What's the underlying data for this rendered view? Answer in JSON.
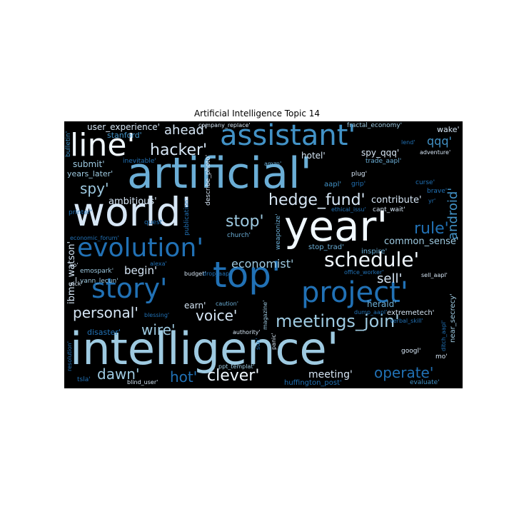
{
  "title": "Artificial Intelligence Topic 14",
  "colors": {
    "background": "#000000",
    "palette": [
      "#f0f8ff",
      "#d6e6f5",
      "#9ecae1",
      "#6baed6",
      "#4292c6",
      "#2171b5",
      "#08519c",
      "#08306b"
    ]
  },
  "words": [
    {
      "text": "intelligence'",
      "size": 62,
      "color": "#9ecae1"
    },
    {
      "text": "artificial'",
      "size": 60,
      "color": "#6baed6"
    },
    {
      "text": "year'",
      "size": 58,
      "color": "#f0f8ff"
    },
    {
      "text": "world'",
      "size": 55,
      "color": "#d6e6f5"
    },
    {
      "text": "top'",
      "size": 50,
      "color": "#2171b5"
    },
    {
      "text": "line'",
      "size": 44,
      "color": "#f0f8ff"
    },
    {
      "text": "assistant'",
      "size": 40,
      "color": "#4292c6"
    },
    {
      "text": "project'",
      "size": 40,
      "color": "#2171b5"
    },
    {
      "text": "story'",
      "size": 38,
      "color": "#2171b5"
    },
    {
      "text": "evolution'",
      "size": 36,
      "color": "#2171b5"
    },
    {
      "text": "schedule'",
      "size": 28,
      "color": "#f0f8ff"
    },
    {
      "text": "meetings_join'",
      "size": 24,
      "color": "#9ecae1"
    },
    {
      "text": "hedge_fund'",
      "size": 22,
      "color": "#d6e6f5"
    },
    {
      "text": "hacker'",
      "size": 22,
      "color": "#d6e6f5"
    },
    {
      "text": "stop'",
      "size": 22,
      "color": "#9ecae1"
    },
    {
      "text": "rule'",
      "size": 22,
      "color": "#2171b5"
    },
    {
      "text": "clever'",
      "size": 22,
      "color": "#f0f8ff"
    },
    {
      "text": "operate'",
      "size": 20,
      "color": "#2171b5"
    },
    {
      "text": "spy'",
      "size": 20,
      "color": "#9ecae1"
    },
    {
      "text": "personal'",
      "size": 20,
      "color": "#d6e6f5"
    },
    {
      "text": "voice'",
      "size": 20,
      "color": "#d6e6f5"
    },
    {
      "text": "hot'",
      "size": 20,
      "color": "#2171b5"
    },
    {
      "text": "dawn'",
      "size": 20,
      "color": "#9ecae1"
    },
    {
      "text": "wire'",
      "size": 20,
      "color": "#9ecae1"
    },
    {
      "text": "ahead'",
      "size": 18,
      "color": "#d6e6f5"
    },
    {
      "text": "sell'",
      "size": 18,
      "color": "#d6e6f5"
    },
    {
      "text": "android'",
      "size": 18,
      "color": "#4292c6"
    },
    {
      "text": "qqq'",
      "size": 16,
      "color": "#4292c6"
    },
    {
      "text": "economist'",
      "size": 16,
      "color": "#9ecae1"
    },
    {
      "text": "begin'",
      "size": 15,
      "color": "#d6e6f5"
    },
    {
      "text": "meeting'",
      "size": 14,
      "color": "#d6e6f5"
    },
    {
      "text": "common_sense'",
      "size": 13,
      "color": "#9ecae1"
    },
    {
      "text": "ambitious'",
      "size": 13,
      "color": "#d6e6f5"
    },
    {
      "text": "contribute'",
      "size": 13,
      "color": "#d6e6f5"
    },
    {
      "text": "ibms_watson'",
      "size": 13,
      "color": "#d6e6f5"
    },
    {
      "text": "hotel'",
      "size": 12,
      "color": "#d6e6f5"
    },
    {
      "text": "spy_qqq'",
      "size": 12,
      "color": "#d6e6f5"
    },
    {
      "text": "herald'",
      "size": 12,
      "color": "#6baed6"
    },
    {
      "text": "user_experience'",
      "size": 12,
      "color": "#d6e6f5"
    },
    {
      "text": "wake'",
      "size": 11,
      "color": "#d6e6f5"
    },
    {
      "text": "stanford'",
      "size": 11,
      "color": "#4292c6"
    },
    {
      "text": "submit'",
      "size": 12,
      "color": "#9ecae1"
    },
    {
      "text": "years_later'",
      "size": 11,
      "color": "#9ecae1"
    },
    {
      "text": "earn'",
      "size": 12,
      "color": "#d6e6f5"
    },
    {
      "text": "disaster'",
      "size": 11,
      "color": "#2171b5"
    },
    {
      "text": "stop_trad'",
      "size": 10,
      "color": "#6baed6"
    },
    {
      "text": "inspire'",
      "size": 10,
      "color": "#6baed6"
    },
    {
      "text": "near_secrecy'",
      "size": 10,
      "color": "#9ecae1"
    },
    {
      "text": "extremetech'",
      "size": 10,
      "color": "#d6e6f5"
    },
    {
      "text": "huffington_post'",
      "size": 10,
      "color": "#2171b5"
    },
    {
      "text": "evaluate'",
      "size": 9,
      "color": "#4292c6"
    },
    {
      "text": "fractal_economy'",
      "size": 9,
      "color": "#9ecae1"
    },
    {
      "text": "company_replace'",
      "size": 8,
      "color": "#d6e6f5"
    },
    {
      "text": "trade_aapl'",
      "size": 9,
      "color": "#6baed6"
    },
    {
      "text": "inevitable'",
      "size": 9,
      "color": "#2171b5"
    },
    {
      "text": "bulletin'",
      "size": 9,
      "color": "#4292c6"
    },
    {
      "text": "lend'",
      "size": 8,
      "color": "#2171b5"
    },
    {
      "text": "adventure'",
      "size": 8,
      "color": "#d6e6f5"
    },
    {
      "text": "plug'",
      "size": 9,
      "color": "#d6e6f5"
    },
    {
      "text": "amzn'",
      "size": 8,
      "color": "#6baed6"
    },
    {
      "text": "aapl'",
      "size": 10,
      "color": "#4292c6"
    },
    {
      "text": "grip'",
      "size": 9,
      "color": "#2171b5"
    },
    {
      "text": "curse'",
      "size": 9,
      "color": "#2171b5"
    },
    {
      "text": "brave'",
      "size": 9,
      "color": "#2171b5"
    },
    {
      "text": "cant_wait'",
      "size": 9,
      "color": "#d6e6f5"
    },
    {
      "text": "ethical_issu'",
      "size": 8,
      "color": "#2171b5"
    },
    {
      "text": "yr'",
      "size": 8,
      "color": "#2171b5"
    },
    {
      "text": "printer'",
      "size": 9,
      "color": "#2171b5"
    },
    {
      "text": "quest'",
      "size": 9,
      "color": "#2171b5"
    },
    {
      "text": "describe_photo'",
      "size": 9,
      "color": "#d6e6f5"
    },
    {
      "text": "publication'",
      "size": 9,
      "color": "#2171b5"
    },
    {
      "text": "church'",
      "size": 9,
      "color": "#6baed6"
    },
    {
      "text": "weaponize'",
      "size": 9,
      "color": "#6baed6"
    },
    {
      "text": "economic_forum'",
      "size": 8,
      "color": "#2171b5"
    },
    {
      "text": "alexa'",
      "size": 8,
      "color": "#2171b5"
    },
    {
      "text": "ko'",
      "size": 8,
      "color": "#d6e6f5"
    },
    {
      "text": "emospark'",
      "size": 9,
      "color": "#9ecae1"
    },
    {
      "text": "yann_lecun'",
      "size": 9,
      "color": "#9ecae1"
    },
    {
      "text": "sick'",
      "size": 8,
      "color": "#d6e6f5"
    },
    {
      "text": "budget'",
      "size": 8,
      "color": "#d6e6f5"
    },
    {
      "text": "caution'",
      "size": 8,
      "color": "#6baed6"
    },
    {
      "text": "drop_aapl'",
      "size": 8,
      "color": "#2171b5"
    },
    {
      "text": "office_worker'",
      "size": 8,
      "color": "#2171b5"
    },
    {
      "text": "sell_aapl'",
      "size": 8,
      "color": "#d6e6f5"
    },
    {
      "text": "dump_aapl'",
      "size": 8,
      "color": "#2171b5"
    },
    {
      "text": "magazine'",
      "size": 8,
      "color": "#9ecae1"
    },
    {
      "text": "authority'",
      "size": 8,
      "color": "#d6e6f5"
    },
    {
      "text": "blessing'",
      "size": 8,
      "color": "#2171b5"
    },
    {
      "text": "verbal_skill'",
      "size": 8,
      "color": "#2171b5"
    },
    {
      "text": "ditch_aapl'",
      "size": 8,
      "color": "#2171b5"
    },
    {
      "text": "resolution'",
      "size": 8,
      "color": "#2171b5"
    },
    {
      "text": "sun'",
      "size": 8,
      "color": "#2171b5"
    },
    {
      "text": "panic'",
      "size": 8,
      "color": "#d6e6f5"
    },
    {
      "text": "googl'",
      "size": 9,
      "color": "#d6e6f5"
    },
    {
      "text": "mo'",
      "size": 9,
      "color": "#d6e6f5"
    },
    {
      "text": "tsla'",
      "size": 9,
      "color": "#2171b5"
    },
    {
      "text": "ppt_templat'",
      "size": 8,
      "color": "#9ecae1"
    },
    {
      "text": "blind_user'",
      "size": 8,
      "color": "#d6e6f5"
    }
  ]
}
